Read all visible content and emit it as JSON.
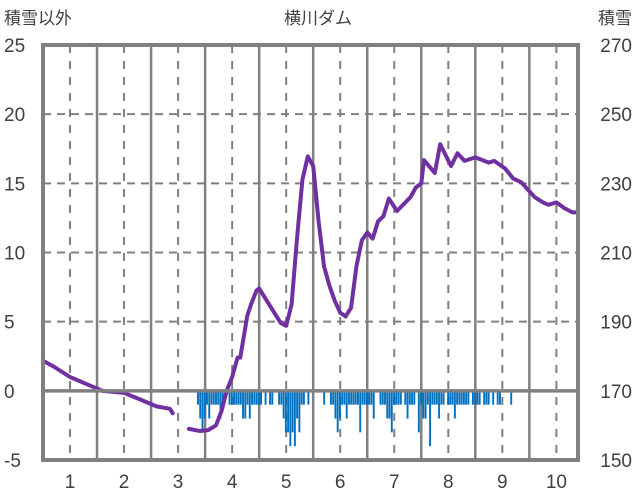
{
  "chart_data": {
    "type": "bar+line",
    "title": "横川ダム",
    "ylabel_left": "積雪以外",
    "ylabel_right": "積雪",
    "x_ticks": [
      "1",
      "2",
      "3",
      "4",
      "5",
      "6",
      "7",
      "8",
      "9",
      "10"
    ],
    "xlim": [
      0.5,
      10.4
    ],
    "ylim_left": [
      -5,
      25
    ],
    "yticks_left": [
      "25",
      "20",
      "15",
      "10",
      "5",
      "0",
      "-5"
    ],
    "ylim_right": [
      150,
      270
    ],
    "yticks_right": [
      "270",
      "250",
      "230",
      "210",
      "190",
      "170",
      "150"
    ],
    "grid": true,
    "colors": {
      "line": "#7030a0",
      "bars": "#0070c0",
      "axis": "#808080"
    },
    "bars": {
      "name": "積雪以外",
      "axis": "left",
      "start_x": 3.35,
      "step_x": 0.0417,
      "values": [
        -1,
        -2,
        -3,
        -2,
        -1,
        -2,
        -1,
        -1,
        -1,
        -1,
        -2,
        -1,
        0,
        0,
        -1,
        -1,
        -1,
        -1,
        -1,
        -1,
        -2,
        -2,
        -1,
        -2,
        -1,
        -1,
        -1,
        -1,
        -1,
        0,
        -1,
        0,
        -1,
        -1,
        0,
        0,
        -1,
        -1,
        -2,
        -3,
        -3,
        -4,
        -3,
        -4,
        -2,
        -3,
        -1,
        -1,
        0,
        -1,
        0,
        0,
        0,
        0,
        0,
        0,
        -1,
        0,
        0,
        -1,
        -1,
        -2,
        -3,
        -2,
        -1,
        -1,
        -2,
        -1,
        -1,
        -1,
        -1,
        -1,
        -3,
        -1,
        -1,
        -1,
        -1,
        -1,
        -2,
        0,
        0,
        -1,
        -1,
        -1,
        -2,
        -2,
        -3,
        -1,
        -1,
        -1,
        -1,
        0,
        -1,
        -2,
        -1,
        -1,
        -1,
        0,
        -3,
        -1,
        -2,
        -2,
        -1,
        -4,
        -1,
        -1,
        -1,
        -2,
        -1,
        -1,
        0,
        -1,
        -1,
        -1,
        -2,
        -1,
        -1,
        -1,
        -1,
        -1,
        -1,
        0,
        -1,
        -1,
        -1,
        -1,
        0,
        -1,
        -1,
        -1,
        0,
        -1,
        0,
        -1,
        -1,
        0,
        0,
        0,
        0,
        -1
      ]
    },
    "line": {
      "name": "積雪",
      "axis": "right",
      "segments": [
        [
          [
            0.5,
            178.7
          ],
          [
            0.7,
            177
          ],
          [
            1.0,
            174
          ],
          [
            1.3,
            172
          ],
          [
            1.6,
            170
          ],
          [
            2.0,
            169.4
          ],
          [
            2.3,
            167.5
          ],
          [
            2.6,
            165.5
          ],
          [
            2.85,
            164.8
          ],
          [
            2.9,
            163.5
          ]
        ],
        [
          [
            3.2,
            159
          ],
          [
            3.4,
            158.4
          ],
          [
            3.55,
            158.6
          ],
          [
            3.7,
            160
          ],
          [
            3.8,
            164
          ],
          [
            3.9,
            170
          ],
          [
            4.0,
            174
          ],
          [
            4.1,
            179.6
          ],
          [
            4.15,
            179.6
          ],
          [
            4.28,
            191.7
          ],
          [
            4.35,
            195
          ],
          [
            4.45,
            199
          ],
          [
            4.5,
            199.6
          ],
          [
            4.7,
            194.6
          ],
          [
            4.9,
            189.6
          ],
          [
            5.0,
            188.8
          ],
          [
            5.1,
            195
          ],
          [
            5.2,
            214
          ],
          [
            5.3,
            231
          ],
          [
            5.4,
            237.8
          ],
          [
            5.5,
            235
          ],
          [
            5.6,
            219
          ],
          [
            5.7,
            206
          ],
          [
            5.8,
            200.4
          ],
          [
            5.9,
            196
          ],
          [
            6.0,
            192.6
          ],
          [
            6.1,
            191.5
          ],
          [
            6.2,
            194
          ],
          [
            6.3,
            206
          ],
          [
            6.4,
            213.5
          ],
          [
            6.5,
            215.8
          ],
          [
            6.6,
            214
          ],
          [
            6.7,
            219
          ],
          [
            6.8,
            220.5
          ],
          [
            6.9,
            225.6
          ],
          [
            7.05,
            222
          ],
          [
            7.15,
            223.6
          ],
          [
            7.3,
            226
          ],
          [
            7.4,
            228.8
          ],
          [
            7.5,
            230
          ],
          [
            7.55,
            236.7
          ],
          [
            7.75,
            233
          ],
          [
            7.85,
            241.3
          ],
          [
            8.05,
            235
          ],
          [
            8.17,
            238.7
          ],
          [
            8.3,
            236.5
          ],
          [
            8.5,
            237.5
          ],
          [
            8.75,
            236
          ],
          [
            8.85,
            236.5
          ],
          [
            9.05,
            234.3
          ],
          [
            9.2,
            231.4
          ],
          [
            9.35,
            230.3
          ],
          [
            9.6,
            226
          ],
          [
            9.75,
            224.5
          ],
          [
            9.85,
            223.8
          ],
          [
            10.0,
            224.5
          ],
          [
            10.15,
            222.8
          ],
          [
            10.3,
            221.6
          ],
          [
            10.4,
            221.6
          ]
        ]
      ]
    }
  }
}
